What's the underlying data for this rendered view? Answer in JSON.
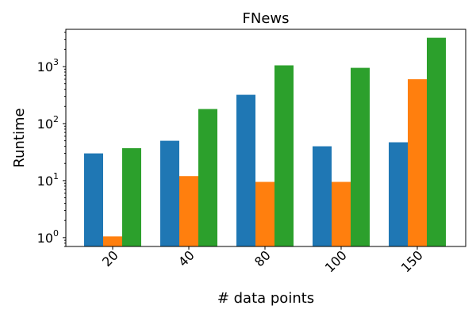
{
  "chart_data": {
    "type": "bar",
    "title": "FNews",
    "xlabel": "# data points",
    "ylabel": "Runtime",
    "yscale": "log",
    "ylim": [
      0.7,
      4500
    ],
    "yticks": [
      {
        "value": 1,
        "base": "10",
        "exp": "0"
      },
      {
        "value": 10,
        "base": "10",
        "exp": "1"
      },
      {
        "value": 100,
        "base": "10",
        "exp": "2"
      },
      {
        "value": 1000,
        "base": "10",
        "exp": "3"
      }
    ],
    "categories": [
      "20",
      "40",
      "80",
      "100",
      "150"
    ],
    "grid": false,
    "legend": "none",
    "series": [
      {
        "color": "#1f77b4",
        "values": [
          30,
          50,
          320,
          40,
          47
        ]
      },
      {
        "color": "#ff7f0e",
        "values": [
          1.05,
          12,
          9.5,
          9.5,
          600
        ]
      },
      {
        "color": "#2ca02c",
        "values": [
          37,
          180,
          1050,
          950,
          3200
        ]
      }
    ]
  }
}
